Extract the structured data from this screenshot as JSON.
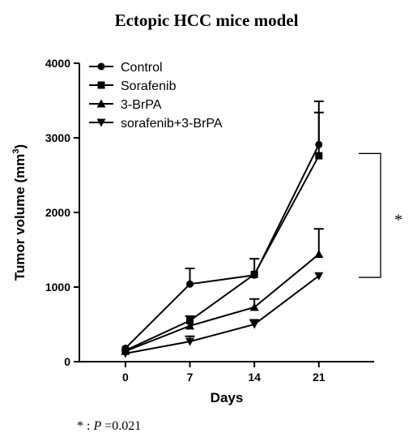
{
  "footnote": {
    "star": "*",
    "sep": " : ",
    "p_label": "P",
    "p_value": " =0.021"
  },
  "chart_data": {
    "type": "line",
    "title": "Ectopic HCC mice model",
    "xlabel": "Days",
    "ylabel_main": "Tumor volume (mm",
    "ylabel_sup": "3",
    "ylabel_end": ")",
    "x": [
      0,
      7,
      14,
      21
    ],
    "x_ticks": [
      "0",
      "7",
      "14",
      "21"
    ],
    "xlim": [
      -5,
      27
    ],
    "ylim": [
      0,
      4000
    ],
    "y_ticks": [
      "0",
      "1000",
      "2000",
      "3000",
      "4000"
    ],
    "y_tick_values": [
      0,
      1000,
      2000,
      3000,
      4000
    ],
    "grid": false,
    "legend_position": "top-left",
    "series": [
      {
        "name": "Control",
        "marker": "circle",
        "values": [
          180,
          1040,
          1160,
          2910
        ],
        "error": [
          0,
          210,
          220,
          580
        ]
      },
      {
        "name": "Sorafenib",
        "marker": "square",
        "values": [
          150,
          550,
          1170,
          2760
        ],
        "error": [
          0,
          60,
          0,
          580
        ]
      },
      {
        "name": "3-BrPA",
        "marker": "triangle-up",
        "values": [
          140,
          480,
          730,
          1440
        ],
        "error": [
          0,
          0,
          110,
          340
        ]
      },
      {
        "name": "sorafenib+3-BrPA",
        "marker": "triangle-down",
        "values": [
          110,
          270,
          500,
          1150
        ],
        "error": [
          0,
          70,
          60,
          0
        ]
      }
    ],
    "annotations": [
      {
        "text": "*",
        "between_series": [
          "Control",
          "sorafenib+3-BrPA"
        ],
        "at_x": 21
      }
    ]
  }
}
